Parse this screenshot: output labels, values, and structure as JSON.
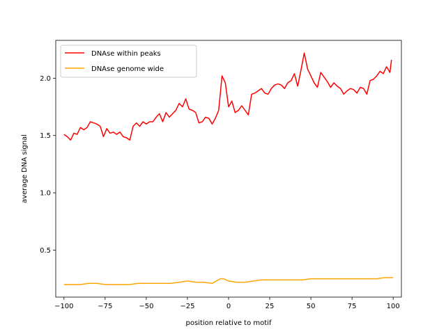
{
  "chart_data": {
    "type": "line",
    "title": "",
    "xlabel": "position relative to motif",
    "ylabel": "average DNA signal",
    "xlim": [
      -105,
      105
    ],
    "ylim": [
      0.09,
      2.33
    ],
    "xticks": [
      -100,
      -75,
      -50,
      -25,
      0,
      25,
      50,
      75,
      100
    ],
    "yticks": [
      0.5,
      1.0,
      1.5,
      2.0
    ],
    "xtick_labels": [
      "−100",
      "−75",
      "−50",
      "−25",
      "0",
      "25",
      "50",
      "75",
      "100"
    ],
    "ytick_labels": [
      "0.5",
      "1.0",
      "1.5",
      "2.0"
    ],
    "grid": false,
    "legend_position": "upper-left",
    "series": [
      {
        "name": "DNAse within peaks",
        "color": "#ff0000",
        "x": [
          -100,
          -98,
          -96,
          -94,
          -92,
          -90,
          -88,
          -86,
          -84,
          -82,
          -80,
          -78,
          -76,
          -74,
          -72,
          -70,
          -68,
          -66,
          -64,
          -62,
          -60,
          -58,
          -56,
          -54,
          -52,
          -50,
          -48,
          -46,
          -44,
          -42,
          -40,
          -38,
          -36,
          -34,
          -32,
          -30,
          -28,
          -26,
          -24,
          -22,
          -20,
          -18,
          -16,
          -14,
          -12,
          -10,
          -8,
          -6,
          -4,
          -2,
          0,
          2,
          4,
          6,
          8,
          10,
          12,
          14,
          16,
          18,
          20,
          22,
          24,
          26,
          28,
          30,
          32,
          34,
          36,
          38,
          40,
          42,
          44,
          46,
          48,
          50,
          52,
          54,
          56,
          58,
          60,
          62,
          64,
          66,
          68,
          70,
          72,
          74,
          76,
          78,
          80,
          82,
          84,
          86,
          88,
          90,
          92,
          94,
          96,
          98,
          99
        ],
        "values": [
          1.51,
          1.49,
          1.46,
          1.52,
          1.51,
          1.57,
          1.55,
          1.57,
          1.62,
          1.61,
          1.6,
          1.58,
          1.49,
          1.56,
          1.52,
          1.53,
          1.51,
          1.53,
          1.49,
          1.48,
          1.46,
          1.58,
          1.61,
          1.58,
          1.62,
          1.6,
          1.62,
          1.62,
          1.66,
          1.69,
          1.62,
          1.7,
          1.66,
          1.69,
          1.72,
          1.78,
          1.75,
          1.82,
          1.73,
          1.72,
          1.7,
          1.61,
          1.62,
          1.66,
          1.65,
          1.6,
          1.65,
          1.72,
          2.02,
          1.96,
          1.75,
          1.8,
          1.7,
          1.72,
          1.76,
          1.72,
          1.68,
          1.86,
          1.87,
          1.89,
          1.91,
          1.87,
          1.86,
          1.91,
          1.94,
          1.95,
          1.94,
          1.91,
          1.96,
          1.98,
          2.04,
          1.93,
          2.07,
          2.22,
          2.08,
          2.02,
          1.96,
          1.92,
          2.05,
          2.01,
          1.97,
          1.92,
          1.96,
          1.93,
          1.91,
          1.86,
          1.89,
          1.91,
          1.9,
          1.87,
          1.92,
          1.91,
          1.86,
          1.98,
          1.99,
          2.02,
          2.06,
          2.04,
          2.1,
          2.05,
          2.16
        ]
      },
      {
        "name": "DNAse genome wide",
        "color": "#ffa500",
        "x": [
          -100,
          -95,
          -90,
          -85,
          -80,
          -75,
          -70,
          -65,
          -60,
          -55,
          -50,
          -45,
          -40,
          -35,
          -30,
          -25,
          -20,
          -15,
          -10,
          -5,
          -3,
          0,
          5,
          10,
          15,
          20,
          25,
          30,
          35,
          40,
          45,
          50,
          55,
          60,
          65,
          70,
          75,
          80,
          85,
          90,
          95,
          100
        ],
        "values": [
          0.2,
          0.2,
          0.2,
          0.21,
          0.21,
          0.2,
          0.2,
          0.2,
          0.2,
          0.21,
          0.21,
          0.21,
          0.21,
          0.21,
          0.22,
          0.23,
          0.22,
          0.22,
          0.21,
          0.25,
          0.25,
          0.23,
          0.22,
          0.22,
          0.23,
          0.24,
          0.24,
          0.24,
          0.24,
          0.24,
          0.24,
          0.25,
          0.25,
          0.25,
          0.25,
          0.25,
          0.25,
          0.25,
          0.25,
          0.25,
          0.26,
          0.26
        ]
      }
    ]
  }
}
